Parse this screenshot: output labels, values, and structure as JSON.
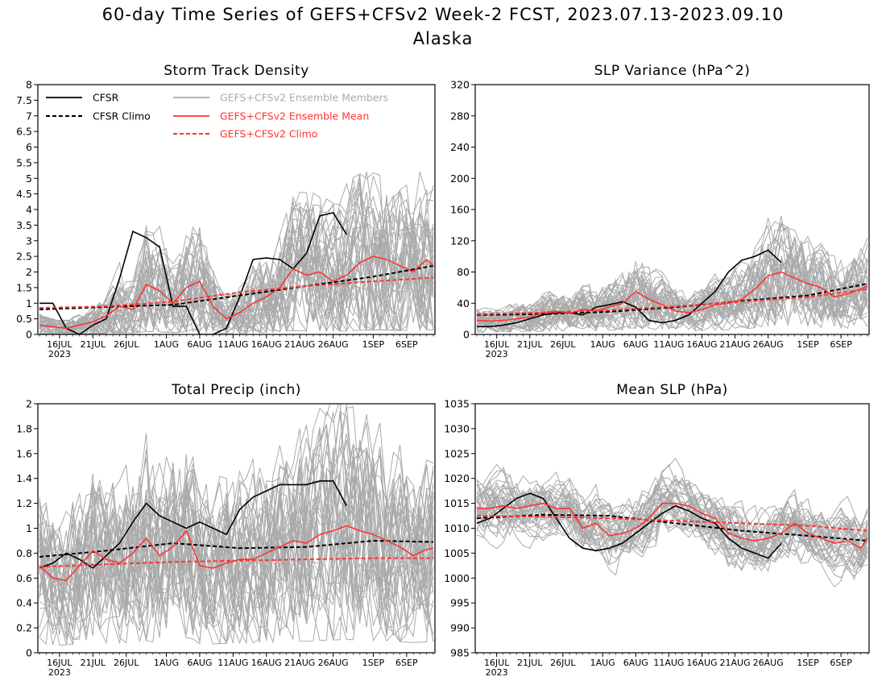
{
  "title": {
    "line1": "60-day Time Series of GEFS+CFSv2 Week-2 FCST, 2023.07.13-2023.09.10",
    "line2": "Alaska"
  },
  "colors": {
    "cfsr": "#000000",
    "ensemble_members": "#aaaaaa",
    "ensemble_mean": "#ff3333",
    "climo_model": "#ff3333",
    "climo_cfsr": "#000000"
  },
  "legend": {
    "cfsr": "CFSR",
    "cfsr_climo": "CFSR Climo",
    "members": "GEFS+CFSv2 Ensemble Members",
    "mean": "GEFS+CFSv2 Ensemble Mean",
    "model_climo": "GEFS+CFSv2 Climo"
  },
  "x_axis": {
    "days": 60,
    "start_date": "2023-07-13",
    "ticks": [
      {
        "day": 3,
        "label": "16JUL"
      },
      {
        "day": 8,
        "label": "21JUL"
      },
      {
        "day": 13,
        "label": "26JUL"
      },
      {
        "day": 19,
        "label": "1AUG"
      },
      {
        "day": 24,
        "label": "6AUG"
      },
      {
        "day": 29,
        "label": "11AUG"
      },
      {
        "day": 34,
        "label": "16AUG"
      },
      {
        "day": 39,
        "label": "21AUG"
      },
      {
        "day": 44,
        "label": "26AUG"
      },
      {
        "day": 50,
        "label": "1SEP"
      },
      {
        "day": 55,
        "label": "6SEP"
      }
    ],
    "year_label": "2023"
  },
  "chart_data": [
    {
      "type": "line",
      "title": "Storm Track Density",
      "ylim": [
        0,
        8
      ],
      "yticks": [
        "0",
        "0.5",
        "1",
        "1.5",
        "2",
        "2.5",
        "3",
        "3.5",
        "4",
        "4.5",
        "5",
        "5.5",
        "6",
        "6.5",
        "7",
        "7.5",
        "8"
      ],
      "yticks_step": 0.5,
      "members_range": {
        "low_pct_of_mean": 0.2,
        "high_pct_of_mean": 2.3
      },
      "series": [
        {
          "name": "CFSR",
          "style": "solid-black",
          "x": [
            0,
            2,
            4,
            6,
            8,
            10,
            12,
            14,
            16,
            18,
            20,
            22,
            24,
            26,
            28,
            30,
            32,
            34,
            36,
            38,
            40,
            42,
            44,
            46
          ],
          "y": [
            1.0,
            1.0,
            0.2,
            0.0,
            0.3,
            0.5,
            1.8,
            3.3,
            3.1,
            2.8,
            0.9,
            0.9,
            0.0,
            0.0,
            0.2,
            1.2,
            2.4,
            2.45,
            2.4,
            2.1,
            2.6,
            3.8,
            3.9,
            3.2
          ]
        },
        {
          "name": "CFSR Climo",
          "style": "dashed-black",
          "x": [
            0,
            10,
            20,
            30,
            40,
            50,
            59
          ],
          "y": [
            0.8,
            0.88,
            0.95,
            1.25,
            1.55,
            1.85,
            2.2
          ]
        },
        {
          "name": "GEFS+CFSv2 Ensemble Mean",
          "style": "solid-red",
          "x": [
            0,
            2,
            4,
            6,
            8,
            10,
            12,
            14,
            16,
            18,
            20,
            22,
            24,
            26,
            28,
            30,
            32,
            34,
            36,
            38,
            40,
            42,
            44,
            46,
            48,
            50,
            52,
            54,
            56,
            58,
            59
          ],
          "y": [
            0.3,
            0.25,
            0.2,
            0.3,
            0.4,
            0.6,
            0.9,
            0.8,
            1.6,
            1.4,
            1.0,
            1.5,
            1.7,
            0.9,
            0.5,
            0.7,
            1.0,
            1.2,
            1.5,
            2.1,
            1.9,
            2.0,
            1.7,
            1.9,
            2.3,
            2.5,
            2.4,
            2.2,
            2.0,
            2.4,
            2.2
          ]
        },
        {
          "name": "GEFS+CFSv2 Climo",
          "style": "dashed-red",
          "x": [
            0,
            10,
            20,
            30,
            40,
            50,
            59
          ],
          "y": [
            0.85,
            0.9,
            1.05,
            1.35,
            1.55,
            1.7,
            1.82
          ]
        }
      ]
    },
    {
      "type": "line",
      "title": "SLP Variance (hPa^2)",
      "ylim": [
        0,
        320
      ],
      "yticks": [
        "0",
        "40",
        "80",
        "120",
        "160",
        "200",
        "240",
        "280",
        "320"
      ],
      "yticks_step": 40,
      "members_range": {
        "low_pct_of_mean": 0.5,
        "high_pct_of_mean": 2.0
      },
      "series": [
        {
          "name": "CFSR",
          "style": "solid-black",
          "x": [
            0,
            2,
            4,
            6,
            8,
            10,
            12,
            14,
            16,
            18,
            20,
            22,
            24,
            26,
            28,
            30,
            32,
            34,
            36,
            38,
            40,
            42,
            44,
            46
          ],
          "y": [
            10,
            10,
            12,
            15,
            20,
            25,
            28,
            28,
            25,
            35,
            38,
            42,
            35,
            18,
            15,
            18,
            25,
            40,
            55,
            80,
            95,
            100,
            108,
            92
          ]
        },
        {
          "name": "CFSR Climo",
          "style": "dashed-black",
          "x": [
            0,
            10,
            20,
            30,
            40,
            50,
            59
          ],
          "y": [
            25,
            26,
            29,
            35,
            43,
            50,
            65
          ]
        },
        {
          "name": "GEFS+CFSv2 Ensemble Mean",
          "style": "solid-red",
          "x": [
            0,
            2,
            4,
            6,
            8,
            10,
            12,
            14,
            16,
            18,
            20,
            22,
            24,
            26,
            28,
            30,
            32,
            34,
            36,
            38,
            40,
            42,
            44,
            46,
            48,
            50,
            52,
            54,
            56,
            58,
            59
          ],
          "y": [
            18,
            17,
            18,
            20,
            22,
            28,
            30,
            27,
            32,
            30,
            35,
            40,
            55,
            45,
            38,
            30,
            28,
            32,
            38,
            40,
            45,
            58,
            75,
            80,
            72,
            65,
            60,
            48,
            52,
            58,
            62
          ]
        },
        {
          "name": "GEFS+CFSv2 Climo",
          "style": "dashed-red",
          "x": [
            0,
            10,
            20,
            30,
            40,
            50,
            59
          ],
          "y": [
            26,
            28,
            31,
            36,
            42,
            48,
            58
          ]
        }
      ]
    },
    {
      "type": "line",
      "title": "Total Precip (inch)",
      "ylim": [
        0,
        2
      ],
      "yticks": [
        "0",
        "0.2",
        "0.4",
        "0.6",
        "0.8",
        "1",
        "1.2",
        "1.4",
        "1.6",
        "1.8",
        "2"
      ],
      "yticks_step": 0.2,
      "members_range": {
        "low_pct_of_mean": 0.35,
        "high_pct_of_mean": 1.9
      },
      "series": [
        {
          "name": "CFSR",
          "style": "solid-black",
          "x": [
            0,
            2,
            4,
            6,
            8,
            10,
            12,
            14,
            16,
            18,
            20,
            22,
            24,
            26,
            28,
            30,
            32,
            34,
            36,
            38,
            40,
            42,
            44,
            46
          ],
          "y": [
            0.68,
            0.72,
            0.8,
            0.75,
            0.68,
            0.78,
            0.88,
            1.05,
            1.2,
            1.1,
            1.05,
            1.0,
            1.05,
            1.0,
            0.95,
            1.15,
            1.25,
            1.3,
            1.35,
            1.35,
            1.35,
            1.38,
            1.38,
            1.18
          ]
        },
        {
          "name": "CFSR Climo",
          "style": "dashed-black",
          "x": [
            0,
            10,
            20,
            30,
            40,
            50,
            59
          ],
          "y": [
            0.77,
            0.82,
            0.88,
            0.84,
            0.85,
            0.9,
            0.89
          ]
        },
        {
          "name": "GEFS+CFSv2 Ensemble Mean",
          "style": "solid-red",
          "x": [
            0,
            2,
            4,
            6,
            8,
            10,
            12,
            14,
            16,
            18,
            20,
            22,
            24,
            26,
            28,
            30,
            32,
            34,
            36,
            38,
            40,
            42,
            44,
            46,
            48,
            50,
            52,
            54,
            56,
            58,
            59
          ],
          "y": [
            0.7,
            0.6,
            0.58,
            0.7,
            0.82,
            0.75,
            0.72,
            0.8,
            0.92,
            0.78,
            0.85,
            0.98,
            0.7,
            0.68,
            0.72,
            0.75,
            0.75,
            0.8,
            0.85,
            0.9,
            0.88,
            0.95,
            0.98,
            1.02,
            0.98,
            0.95,
            0.9,
            0.85,
            0.78,
            0.83,
            0.84
          ]
        },
        {
          "name": "GEFS+CFSv2 Climo",
          "style": "dashed-red",
          "x": [
            0,
            10,
            20,
            30,
            40,
            50,
            59
          ],
          "y": [
            0.69,
            0.71,
            0.73,
            0.74,
            0.75,
            0.76,
            0.76
          ]
        }
      ]
    },
    {
      "type": "line",
      "title": "Mean SLP (hPa)",
      "ylim": [
        985,
        1035
      ],
      "yticks": [
        "985",
        "990",
        "995",
        "1000",
        "1005",
        "1010",
        "1015",
        "1020",
        "1025",
        "1030",
        "1035"
      ],
      "yticks_step": 5,
      "members_range": {
        "low_abs": 6,
        "high_abs": 7
      },
      "series": [
        {
          "name": "CFSR",
          "style": "solid-black",
          "x": [
            0,
            2,
            4,
            6,
            8,
            10,
            12,
            14,
            16,
            18,
            20,
            22,
            24,
            26,
            28,
            30,
            32,
            34,
            36,
            38,
            40,
            42,
            44,
            46
          ],
          "y": [
            1011,
            1012,
            1014,
            1016,
            1017,
            1016,
            1012,
            1008,
            1006,
            1005.5,
            1006,
            1007,
            1009,
            1011,
            1013,
            1014.5,
            1013.5,
            1012,
            1011,
            1008,
            1006,
            1005,
            1004,
            1007
          ]
        },
        {
          "name": "CFSR Climo",
          "style": "dashed-black",
          "x": [
            0,
            10,
            20,
            30,
            40,
            50,
            59
          ],
          "y": [
            1012,
            1012.7,
            1012.5,
            1011,
            1009.5,
            1008.5,
            1007.5
          ]
        },
        {
          "name": "GEFS+CFSv2 Ensemble Mean",
          "style": "solid-red",
          "x": [
            0,
            2,
            4,
            6,
            8,
            10,
            12,
            14,
            16,
            18,
            20,
            22,
            24,
            26,
            28,
            30,
            32,
            34,
            36,
            38,
            40,
            42,
            44,
            46,
            48,
            50,
            52,
            54,
            56,
            58,
            59
          ],
          "y": [
            1014,
            1014,
            1014.5,
            1014,
            1014.5,
            1015,
            1014,
            1014,
            1010,
            1011,
            1008.5,
            1009,
            1010,
            1012,
            1015,
            1015,
            1014.5,
            1013,
            1012,
            1009,
            1008,
            1007.5,
            1008,
            1009,
            1011,
            1009,
            1008,
            1007,
            1007.5,
            1006,
            1008
          ]
        },
        {
          "name": "GEFS+CFSv2 Climo",
          "style": "dashed-red",
          "x": [
            0,
            10,
            20,
            30,
            40,
            50,
            59
          ],
          "y": [
            1012.5,
            1012.3,
            1012,
            1011.5,
            1011,
            1010.5,
            1009.5
          ]
        }
      ]
    }
  ]
}
